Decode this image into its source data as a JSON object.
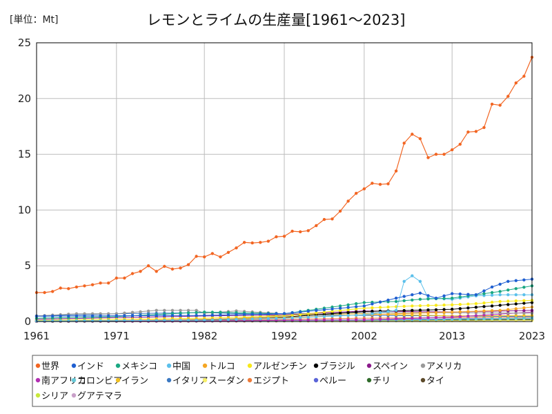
{
  "chart_data": {
    "type": "line",
    "title": "レモンとライムの生産量[1961～2023]",
    "unit_label": "[単位：Mt]",
    "xlim": [
      1961,
      2023
    ],
    "ylim": [
      0,
      25
    ],
    "x_ticks": [
      1961,
      1971,
      1982,
      1992,
      2002,
      2013,
      2023
    ],
    "y_ticks": [
      0,
      5,
      10,
      15,
      20,
      25
    ],
    "grid": true,
    "legend_position": "bottom",
    "series": [
      {
        "name": "世界",
        "color": "#f26522",
        "x": [
          1961,
          1962,
          1963,
          1964,
          1965,
          1966,
          1967,
          1968,
          1969,
          1970,
          1971,
          1972,
          1973,
          1974,
          1975,
          1976,
          1977,
          1978,
          1979,
          1980,
          1981,
          1982,
          1983,
          1984,
          1985,
          1986,
          1987,
          1988,
          1989,
          1990,
          1991,
          1992,
          1993,
          1994,
          1995,
          1996,
          1997,
          1998,
          1999,
          2000,
          2001,
          2002,
          2003,
          2004,
          2005,
          2006,
          2007,
          2008,
          2009,
          2010,
          2011,
          2012,
          2013,
          2014,
          2015,
          2016,
          2017,
          2018,
          2019,
          2020,
          2021,
          2022,
          2023
        ],
        "y": [
          2.6,
          2.6,
          2.7,
          3.0,
          2.95,
          3.1,
          3.2,
          3.3,
          3.45,
          3.45,
          3.9,
          3.9,
          4.3,
          4.5,
          5.0,
          4.5,
          4.95,
          4.7,
          4.8,
          5.1,
          5.85,
          5.8,
          6.1,
          5.8,
          6.2,
          6.6,
          7.1,
          7.05,
          7.1,
          7.2,
          7.6,
          7.65,
          8.1,
          8.05,
          8.15,
          8.6,
          9.15,
          9.2,
          9.9,
          10.8,
          11.5,
          11.9,
          12.4,
          12.3,
          12.35,
          13.5,
          16.0,
          16.8,
          16.4,
          14.7,
          15.0,
          15.0,
          15.4,
          15.9,
          17.0,
          17.05,
          17.4,
          19.5,
          19.4,
          20.2,
          21.4,
          22.0,
          23.7
        ]
      },
      {
        "name": "インド",
        "color": "#1f5fd1",
        "x": [
          1961,
          1971,
          1982,
          1992,
          2002,
          2006,
          2009,
          2011,
          2013,
          2016,
          2018,
          2020,
          2023
        ],
        "y": [
          0.48,
          0.52,
          0.55,
          0.72,
          1.4,
          2.1,
          2.55,
          2.1,
          2.5,
          2.4,
          3.1,
          3.6,
          3.8
        ]
      },
      {
        "name": "メキシコ",
        "color": "#1aa882",
        "x": [
          1961,
          1971,
          1982,
          1992,
          2002,
          2006,
          2009,
          2013,
          2016,
          2019,
          2023
        ],
        "y": [
          0.3,
          0.45,
          0.85,
          0.7,
          1.7,
          1.8,
          2.0,
          2.1,
          2.4,
          2.7,
          3.2
        ]
      },
      {
        "name": "中国",
        "color": "#5bc0eb",
        "x": [
          1961,
          1971,
          1982,
          1992,
          2002,
          2006,
          2007,
          2008,
          2009,
          2010,
          2013,
          2016,
          2019,
          2023
        ],
        "y": [
          0.05,
          0.08,
          0.12,
          0.3,
          0.6,
          1.0,
          3.6,
          4.1,
          3.6,
          2.1,
          2.0,
          2.3,
          2.4,
          2.4
        ]
      },
      {
        "name": "トルコ",
        "color": "#f5a623",
        "x": [
          1961,
          1971,
          1982,
          1992,
          2002,
          2013,
          2019,
          2023
        ],
        "y": [
          0.05,
          0.1,
          0.2,
          0.35,
          0.6,
          0.85,
          1.0,
          1.3
        ]
      },
      {
        "name": "アルゼンチン",
        "color": "#f7e81a",
        "x": [
          1961,
          1971,
          1982,
          1992,
          2002,
          2008,
          2013,
          2016,
          2019,
          2023
        ],
        "y": [
          0.1,
          0.2,
          0.3,
          0.5,
          1.2,
          1.4,
          1.5,
          1.6,
          1.8,
          1.9
        ]
      },
      {
        "name": "ブラジル",
        "color": "#000000",
        "x": [
          1961,
          1971,
          1982,
          1992,
          2002,
          2008,
          2013,
          2018,
          2023
        ],
        "y": [
          0.05,
          0.08,
          0.15,
          0.4,
          0.9,
          1.0,
          1.1,
          1.4,
          1.7
        ]
      },
      {
        "name": "スペイン",
        "color": "#8b1a8b",
        "x": [
          1961,
          1971,
          1982,
          1992,
          2002,
          2013,
          2023
        ],
        "y": [
          0.2,
          0.35,
          0.5,
          0.6,
          0.95,
          0.85,
          1.0
        ]
      },
      {
        "name": "アメリカ",
        "color": "#999999",
        "x": [
          1961,
          1966,
          1971,
          1976,
          1981,
          1982,
          1986,
          1992,
          2002,
          2013,
          2023
        ],
        "y": [
          0.5,
          0.7,
          0.7,
          1.0,
          1.0,
          0.75,
          0.95,
          0.7,
          0.8,
          0.8,
          0.75
        ]
      },
      {
        "name": "南アフリカ",
        "color": "#b22eb2",
        "x": [
          1961,
          1982,
          2002,
          2013,
          2023
        ],
        "y": [
          0.02,
          0.05,
          0.15,
          0.4,
          0.85
        ]
      },
      {
        "name": "コロンビア",
        "color": "#66c8d6",
        "x": [
          1961,
          1982,
          2002,
          2013,
          2023
        ],
        "y": [
          0.02,
          0.05,
          0.1,
          0.2,
          0.3
        ]
      },
      {
        "name": "イラン",
        "color": "#f0c020",
        "x": [
          1961,
          1982,
          1992,
          2002,
          2013,
          2023
        ],
        "y": [
          0.02,
          0.05,
          0.6,
          0.7,
          0.5,
          0.55
        ]
      },
      {
        "name": "イタリア",
        "color": "#3b78c2",
        "x": [
          1961,
          1971,
          1982,
          1992,
          2002,
          2013,
          2023
        ],
        "y": [
          0.5,
          0.7,
          0.8,
          0.6,
          0.55,
          0.5,
          0.45
        ]
      },
      {
        "name": "スーダン",
        "color": "#f7f06a",
        "x": [
          1961,
          2002,
          2023
        ],
        "y": [
          0.02,
          0.05,
          0.1
        ]
      },
      {
        "name": "エジプト",
        "color": "#ec7b3a",
        "x": [
          1961,
          1982,
          2002,
          2013,
          2023
        ],
        "y": [
          0.05,
          0.1,
          0.3,
          0.35,
          0.4
        ]
      },
      {
        "name": "ペルー",
        "color": "#5a64d8",
        "x": [
          1961,
          1982,
          2002,
          2013,
          2023
        ],
        "y": [
          0.05,
          0.08,
          0.15,
          0.25,
          0.3
        ]
      },
      {
        "name": "チリ",
        "color": "#2f6b2a",
        "x": [
          1961,
          2002,
          2023
        ],
        "y": [
          0.02,
          0.1,
          0.2
        ]
      },
      {
        "name": "タイ",
        "color": "#5c4a2a",
        "x": [
          1961,
          2002,
          2023
        ],
        "y": [
          0.02,
          0.08,
          0.15
        ]
      },
      {
        "name": "シリア",
        "color": "#c8e83a",
        "x": [
          1961,
          2002,
          2023
        ],
        "y": [
          0.01,
          0.08,
          0.12
        ]
      },
      {
        "name": "グアテマラ",
        "color": "#c9a0c9",
        "x": [
          1961,
          2002,
          2023
        ],
        "y": [
          0.01,
          0.05,
          0.15
        ]
      }
    ]
  }
}
